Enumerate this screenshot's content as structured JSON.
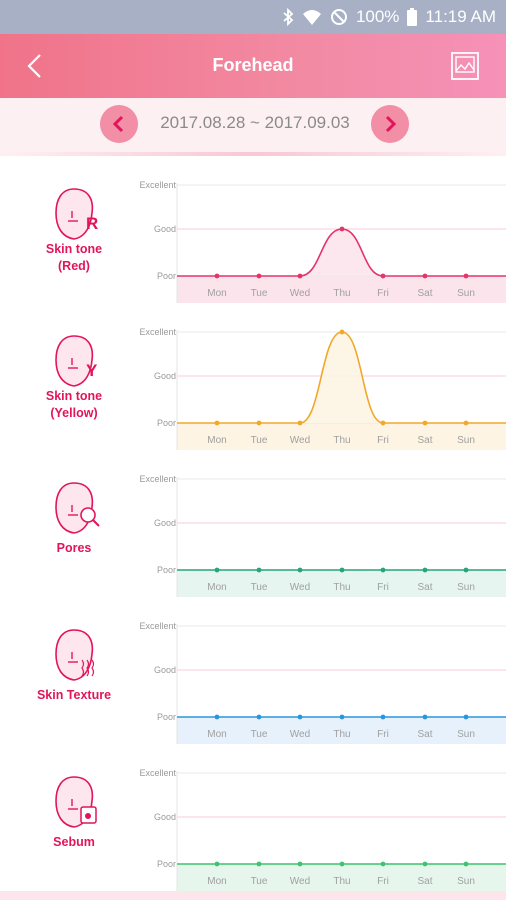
{
  "status_bar": {
    "battery": "100%",
    "time": "11:19 AM"
  },
  "header": {
    "title": "Forehead"
  },
  "date_nav": {
    "range": "2017.08.28 ~ 2017.09.03"
  },
  "levels": [
    "Excellent",
    "Good",
    "Poor"
  ],
  "days": [
    "Mon",
    "Tue",
    "Wed",
    "Thu",
    "Fri",
    "Sat",
    "Sun"
  ],
  "chart_data": [
    {
      "type": "line",
      "title": "Skin tone (Red)",
      "y_levels": [
        "Poor",
        "Good",
        "Excellent"
      ],
      "x": [
        "Mon",
        "Tue",
        "Wed",
        "Thu",
        "Fri",
        "Sat",
        "Sun"
      ],
      "values": [
        0,
        0,
        0,
        1,
        0,
        0,
        0
      ],
      "color": "#e3356b",
      "fill": "#fce4ec"
    },
    {
      "type": "line",
      "title": "Skin tone (Yellow)",
      "y_levels": [
        "Poor",
        "Good",
        "Excellent"
      ],
      "x": [
        "Mon",
        "Tue",
        "Wed",
        "Thu",
        "Fri",
        "Sat",
        "Sun"
      ],
      "values": [
        0,
        0,
        0,
        2,
        0,
        0,
        0
      ],
      "color": "#f0a82c",
      "fill": "#fdf4e3"
    },
    {
      "type": "line",
      "title": "Pores",
      "y_levels": [
        "Poor",
        "Good",
        "Excellent"
      ],
      "x": [
        "Mon",
        "Tue",
        "Wed",
        "Thu",
        "Fri",
        "Sat",
        "Sun"
      ],
      "values": [
        0,
        0,
        0,
        0,
        0,
        0,
        0
      ],
      "color": "#24a57a",
      "fill": "#e6f5ef"
    },
    {
      "type": "line",
      "title": "Skin Texture",
      "y_levels": [
        "Poor",
        "Good",
        "Excellent"
      ],
      "x": [
        "Mon",
        "Tue",
        "Wed",
        "Thu",
        "Fri",
        "Sat",
        "Sun"
      ],
      "values": [
        0,
        0,
        0,
        0,
        0,
        0,
        0
      ],
      "color": "#2b96e0",
      "fill": "#e6f1fb"
    },
    {
      "type": "line",
      "title": "Sebum",
      "y_levels": [
        "Poor",
        "Good",
        "Excellent"
      ],
      "x": [
        "Mon",
        "Tue",
        "Wed",
        "Thu",
        "Fri",
        "Sat",
        "Sun"
      ],
      "values": [
        0,
        0,
        0,
        0,
        0,
        0,
        0
      ],
      "color": "#3cc46f",
      "fill": "#e6f6ec"
    }
  ],
  "rows": [
    {
      "label_line1": "Skin tone",
      "label_line2": "(Red)",
      "icon": "face-red-icon",
      "badge": "R"
    },
    {
      "label_line1": "Skin tone",
      "label_line2": "(Yellow)",
      "icon": "face-yellow-icon",
      "badge": "Y"
    },
    {
      "label_line1": "Pores",
      "label_line2": "",
      "icon": "face-pores-icon",
      "badge": ""
    },
    {
      "label_line1": "Skin Texture",
      "label_line2": "",
      "icon": "face-texture-icon",
      "badge": ""
    },
    {
      "label_line1": "Sebum",
      "label_line2": "",
      "icon": "face-sebum-icon",
      "badge": ""
    }
  ]
}
